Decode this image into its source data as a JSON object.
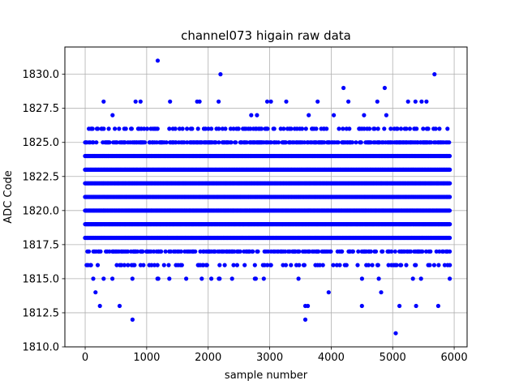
{
  "chart_data": {
    "type": "scatter",
    "title": "channel073 higain raw data",
    "xlabel": "sample number",
    "ylabel": "ADC Code",
    "xlim": [
      -330,
      6210
    ],
    "ylim": [
      1810.0,
      1832.0
    ],
    "xticks": [
      0,
      1000,
      2000,
      3000,
      4000,
      5000,
      6000
    ],
    "yticks": [
      1810.0,
      1812.5,
      1815.0,
      1817.5,
      1820.0,
      1822.5,
      1825.0,
      1827.5,
      1830.0
    ],
    "xtick_labels": [
      "0",
      "1000",
      "2000",
      "3000",
      "4000",
      "5000",
      "6000"
    ],
    "ytick_labels": [
      "1810.0",
      "1812.5",
      "1815.0",
      "1817.5",
      "1820.0",
      "1822.5",
      "1825.0",
      "1827.5",
      "1830.0"
    ],
    "grid": true,
    "marker_color": "#0000ff",
    "x_range": [
      0,
      5930
    ],
    "dense_levels": [
      1818,
      1819,
      1820,
      1821,
      1822,
      1823,
      1824
    ],
    "level_densities": [
      {
        "y": 1813,
        "density": 0.003
      },
      {
        "y": 1814,
        "density": 0.006
      },
      {
        "y": 1815,
        "density": 0.03
      },
      {
        "y": 1816,
        "density": 0.16
      },
      {
        "y": 1817,
        "density": 0.42
      },
      {
        "y": 1818,
        "density": 1.0
      },
      {
        "y": 1819,
        "density": 1.0
      },
      {
        "y": 1820,
        "density": 1.0
      },
      {
        "y": 1821,
        "density": 1.0
      },
      {
        "y": 1822,
        "density": 1.0
      },
      {
        "y": 1823,
        "density": 1.0
      },
      {
        "y": 1824,
        "density": 1.0
      },
      {
        "y": 1825,
        "density": 0.5
      },
      {
        "y": 1826,
        "density": 0.2
      },
      {
        "y": 1827,
        "density": 0.02
      }
    ],
    "outliers": [
      {
        "x": 1180,
        "y": 1831
      },
      {
        "x": 2200,
        "y": 1830
      },
      {
        "x": 5680,
        "y": 1830
      },
      {
        "x": 4200,
        "y": 1829
      },
      {
        "x": 4870,
        "y": 1829
      },
      {
        "x": 300,
        "y": 1828
      },
      {
        "x": 820,
        "y": 1828
      },
      {
        "x": 900,
        "y": 1828
      },
      {
        "x": 1380,
        "y": 1828
      },
      {
        "x": 1820,
        "y": 1828
      },
      {
        "x": 1860,
        "y": 1828
      },
      {
        "x": 2170,
        "y": 1828
      },
      {
        "x": 2960,
        "y": 1828
      },
      {
        "x": 3020,
        "y": 1828
      },
      {
        "x": 3270,
        "y": 1828
      },
      {
        "x": 3780,
        "y": 1828
      },
      {
        "x": 4280,
        "y": 1828
      },
      {
        "x": 4750,
        "y": 1828
      },
      {
        "x": 5250,
        "y": 1828
      },
      {
        "x": 5370,
        "y": 1828
      },
      {
        "x": 5470,
        "y": 1828
      },
      {
        "x": 5550,
        "y": 1828
      },
      {
        "x": 240,
        "y": 1813
      },
      {
        "x": 560,
        "y": 1813
      },
      {
        "x": 3580,
        "y": 1813
      },
      {
        "x": 3620,
        "y": 1813
      },
      {
        "x": 4500,
        "y": 1813
      },
      {
        "x": 5110,
        "y": 1813
      },
      {
        "x": 5380,
        "y": 1813
      },
      {
        "x": 5740,
        "y": 1813
      },
      {
        "x": 770,
        "y": 1812
      },
      {
        "x": 3580,
        "y": 1812
      },
      {
        "x": 5050,
        "y": 1811
      }
    ]
  }
}
